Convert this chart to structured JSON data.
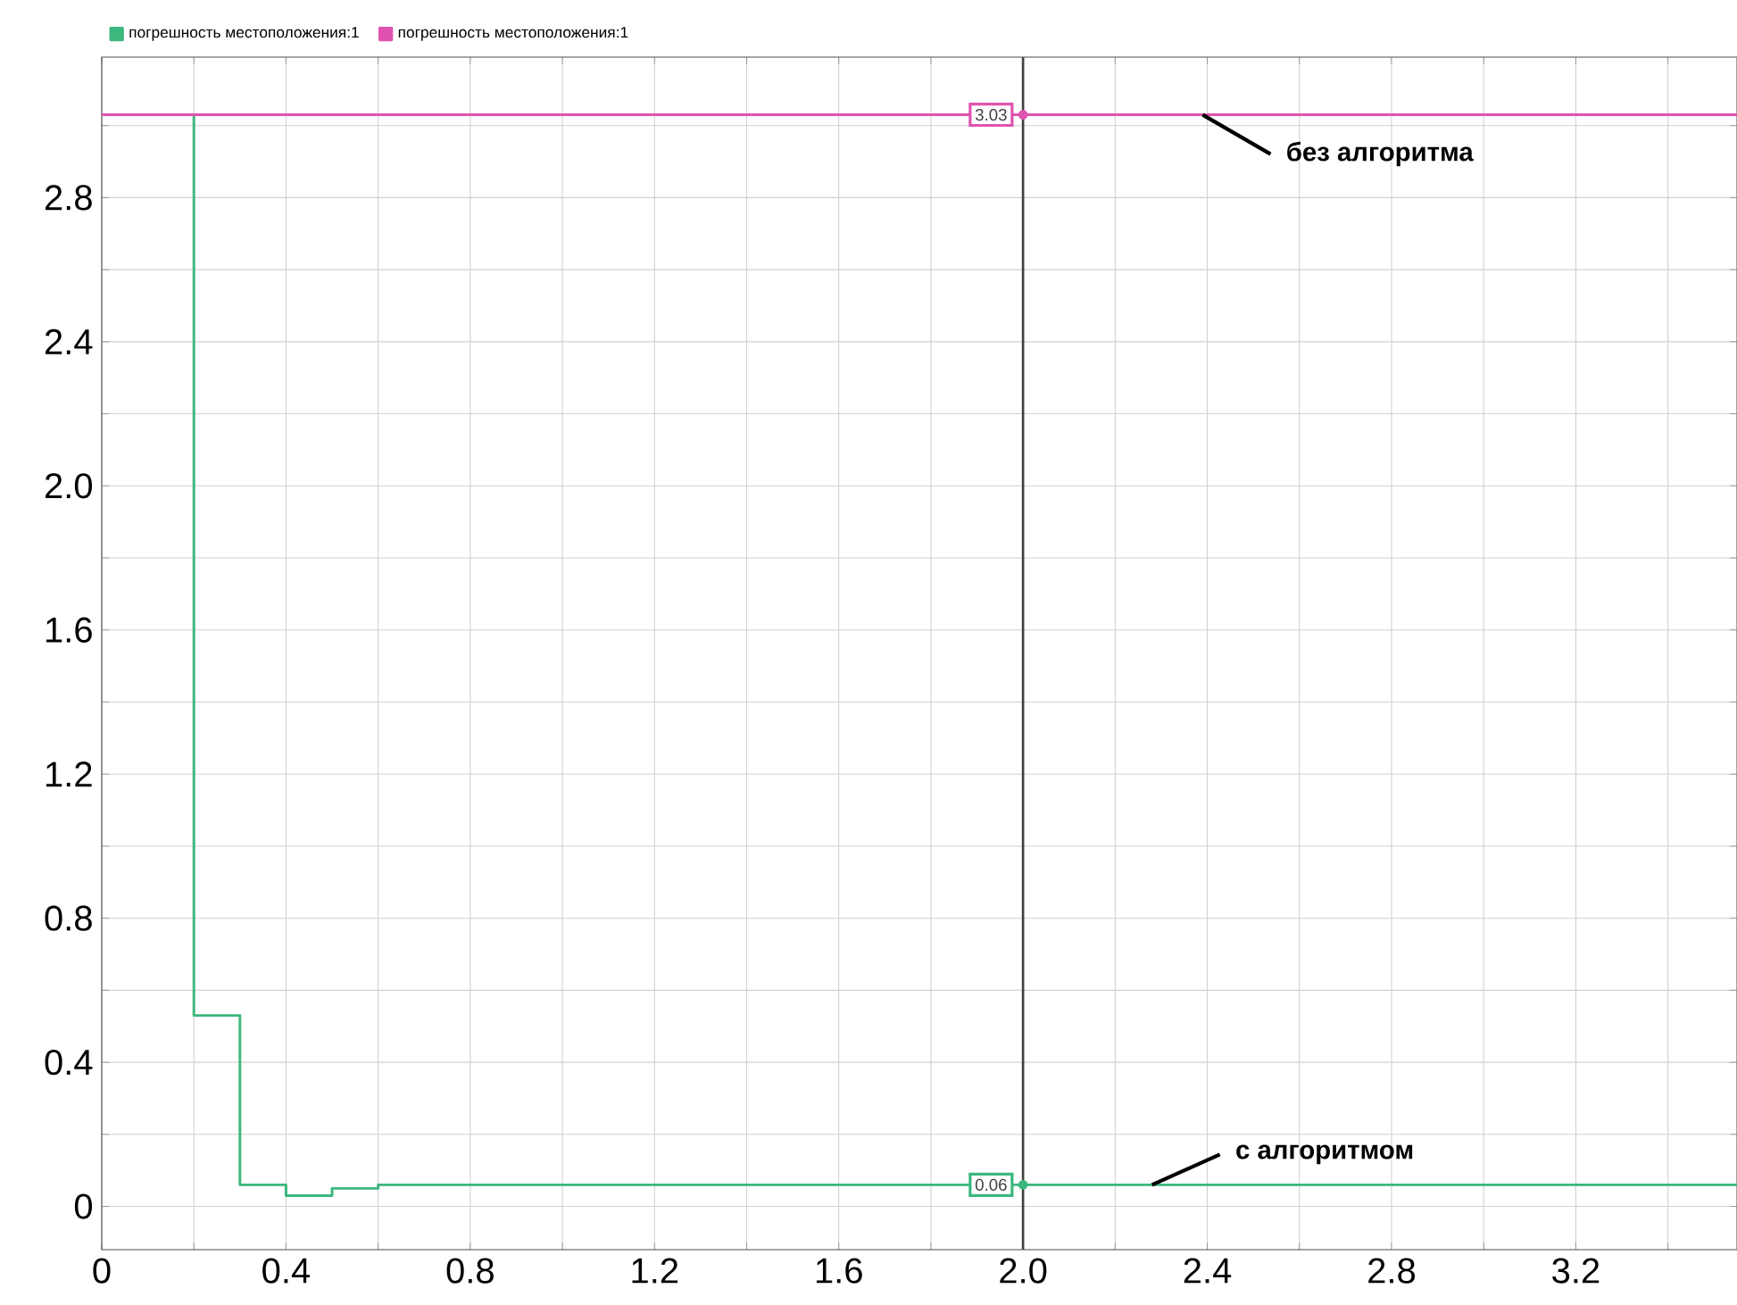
{
  "chart_data": {
    "type": "step",
    "xlim": [
      0,
      3.55
    ],
    "ylim": [
      -0.12,
      3.19
    ],
    "xticks": [
      0,
      {
        "value": 0.2,
        "label": null
      },
      0.4,
      {
        "value": 0.6,
        "label": null
      },
      0.8,
      {
        "value": 1.0,
        "label": null
      },
      1.2,
      {
        "value": 1.4,
        "label": null
      },
      1.6,
      {
        "value": 1.8,
        "label": null
      },
      {
        "value": 2.0,
        "label": "2.0"
      },
      {
        "value": 2.2,
        "label": null
      },
      2.4,
      {
        "value": 2.6,
        "label": null
      },
      2.8,
      {
        "value": 3.0,
        "label": null
      },
      3.2,
      {
        "value": 3.4,
        "label": null
      }
    ],
    "yticks": [
      0,
      {
        "value": 0.2,
        "label": null
      },
      0.4,
      {
        "value": 0.6,
        "label": null
      },
      0.8,
      {
        "value": 1.0,
        "label": null
      },
      1.2,
      {
        "value": 1.4,
        "label": null
      },
      1.6,
      {
        "value": 1.8,
        "label": null
      },
      {
        "value": 2.0,
        "label": "2.0"
      },
      {
        "value": 2.2,
        "label": null
      },
      2.4,
      {
        "value": 2.6,
        "label": null
      },
      2.8,
      {
        "value": 3.0,
        "label": null
      }
    ],
    "grid": true,
    "legend": "top left",
    "marker": "none",
    "line_style": "solid",
    "series": [
      {
        "name": "погрешность местоположения:1",
        "color": "#3cb77e",
        "x": [
          0,
          0.2,
          0.3,
          0.4,
          0.5,
          0.6,
          2.0,
          3.55
        ],
        "values": [
          3.03,
          0.53,
          0.06,
          0.03,
          0.05,
          0.06,
          0.06,
          0.06
        ],
        "value_labels": [
          null,
          null,
          null,
          null,
          null,
          null,
          "0.06",
          null
        ]
      },
      {
        "name": "погрешность местоположения:1",
        "color": "#e052b0",
        "x": [
          0,
          2.0,
          3.55
        ],
        "values": [
          3.03,
          3.03,
          3.03
        ],
        "value_labels": [
          null,
          "3.03",
          null
        ]
      }
    ],
    "ref_lines": [
      {
        "axis": "x",
        "value": 2.0,
        "label": null,
        "color": "#404040"
      }
    ],
    "annotations": [
      {
        "text": "без алгоритма",
        "x": 2.39,
        "y": 3.03
      },
      {
        "text": "с алгоритмом",
        "x": 2.28,
        "y": 0.06
      }
    ]
  }
}
